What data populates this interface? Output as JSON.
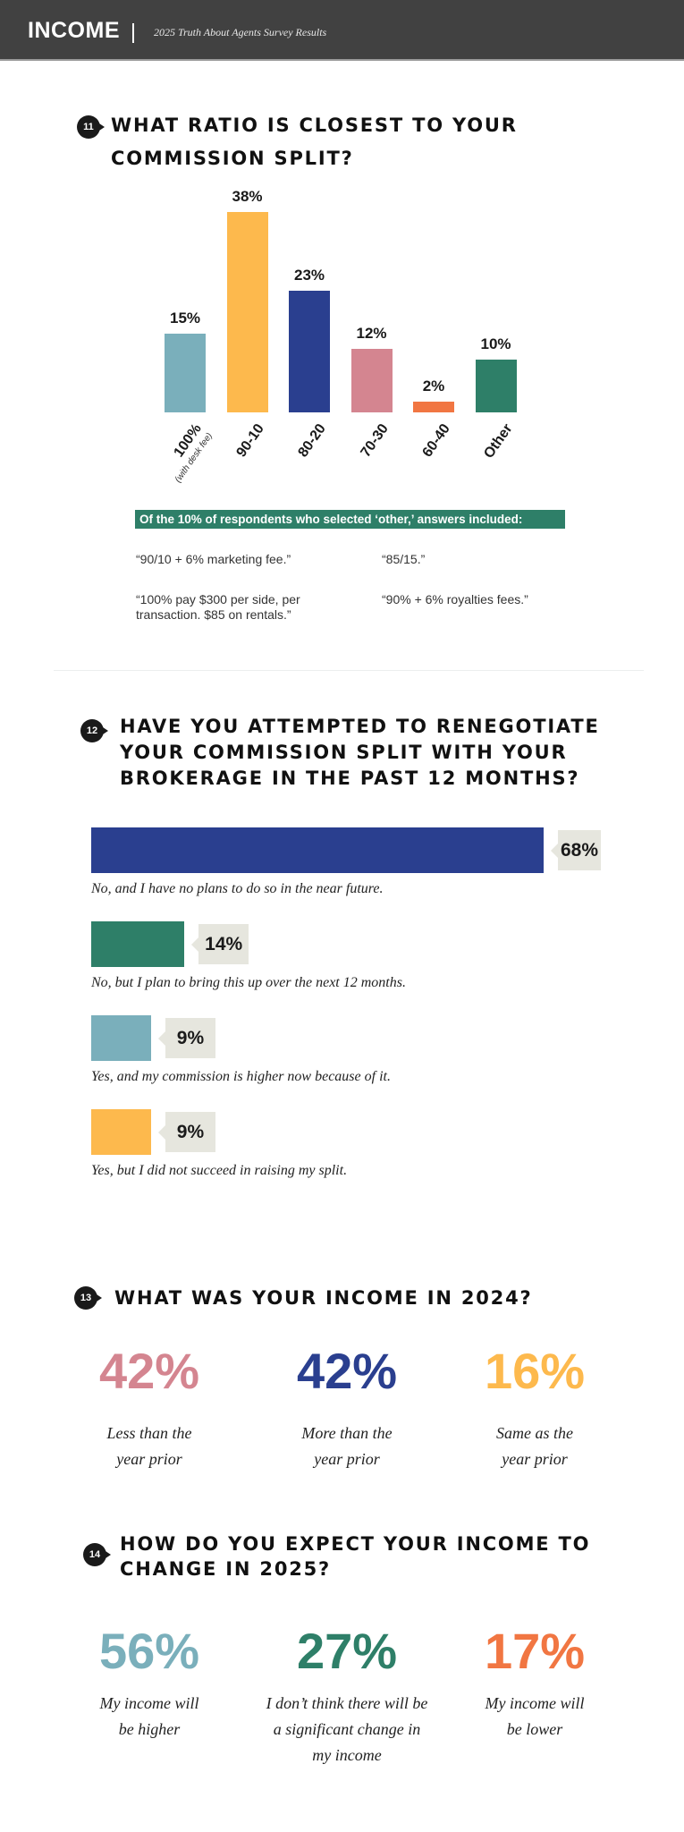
{
  "header": {
    "section": "INCOME",
    "subtitle": "2025 Truth About Agents Survey Results",
    "bg": "#414141"
  },
  "q11": {
    "number": "11",
    "title_lines": [
      "WHAT RATIO IS CLOSEST TO YOUR",
      "COMMISSION SPLIT?"
    ],
    "other_banner": "Of the 10% of respondents who selected ‘other,’ answers included:",
    "quotes": [
      "“90/10 + 6% marketing fee.”",
      "“85/15.”",
      "“100% pay $300 per side, per transaction. $85 on rentals.”",
      "“90% + 6% royalties fees.”"
    ]
  },
  "chart_data": [
    {
      "type": "bar",
      "title": "",
      "xlabel": "",
      "ylabel": "",
      "categories": [
        "100%",
        "90-10",
        "80-20",
        "70-30",
        "60-40",
        "Other"
      ],
      "category_sublabels": [
        "(with desk fee)",
        "",
        "",
        "",
        "",
        ""
      ],
      "values": [
        15,
        38,
        23,
        12,
        2,
        10
      ],
      "value_labels": [
        "15%",
        "38%",
        "23%",
        "12%",
        "2%",
        "10%"
      ],
      "colors": [
        "#7aafbb",
        "#fdb94d",
        "#2a3f8f",
        "#d48590",
        "#f17642",
        "#2e7f68"
      ],
      "grid": false,
      "legend": "none"
    },
    {
      "type": "bar",
      "orientation": "horizontal",
      "title": "",
      "xlabel": "",
      "ylabel": "",
      "categories": [
        "No, and I have no plans to do so in the near future.",
        "No, but I plan to bring this up over the next 12 months.",
        "Yes, and my commission is higher now because of it.",
        "Yes, but I did not succeed in raising my split."
      ],
      "values": [
        68,
        14,
        9,
        9
      ],
      "value_labels": [
        "68%",
        "14%",
        "9%",
        "9%"
      ],
      "colors": [
        "#2a3f8f",
        "#2e7f68",
        "#7aafbb",
        "#fdb94d"
      ],
      "grid": false,
      "legend": "none"
    }
  ],
  "q12": {
    "number": "12",
    "title_lines": [
      "HAVE YOU ATTEMPTED TO RENEGOTIATE",
      "YOUR COMMISSION SPLIT WITH YOUR",
      "BROKERAGE IN THE PAST 12 MONTHS?"
    ]
  },
  "q13": {
    "number": "13",
    "title_lines": [
      "WHAT WAS YOUR INCOME IN 2024?"
    ],
    "stats": [
      {
        "value": "42%",
        "caption": [
          "Less than the",
          "year prior"
        ],
        "color": "#d48590"
      },
      {
        "value": "42%",
        "caption": [
          "More than the",
          "year prior"
        ],
        "color": "#2a3f8f"
      },
      {
        "value": "16%",
        "caption": [
          "Same as the",
          "year prior"
        ],
        "color": "#fdb94d"
      }
    ]
  },
  "q14": {
    "number": "14",
    "title_lines": [
      "HOW DO YOU EXPECT YOUR INCOME TO",
      "CHANGE IN 2025?"
    ],
    "stats": [
      {
        "value": "56%",
        "caption": [
          "My income will",
          "be higher"
        ],
        "color": "#7aafbb"
      },
      {
        "value": "27%",
        "caption": [
          "I don’t think there will be",
          "a significant change in",
          "my income"
        ],
        "color": "#2e7f68"
      },
      {
        "value": "17%",
        "caption": [
          "My income will",
          "be lower"
        ],
        "color": "#f17642"
      }
    ]
  }
}
